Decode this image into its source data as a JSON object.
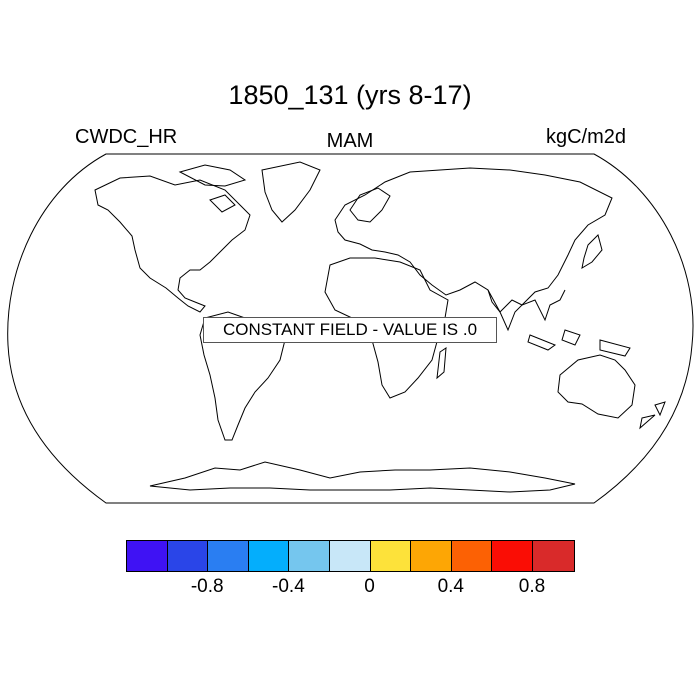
{
  "title": "1850_131 (yrs 8-17)",
  "left_label": "CWDC_HR",
  "center_label": "MAM",
  "right_label": "kgC/m2d",
  "constant_field_text": "CONSTANT FIELD - VALUE IS .0",
  "colorbar": {
    "colors": [
      "#3f12f4",
      "#2a45e8",
      "#2a7ef2",
      "#04aefc",
      "#75c6ee",
      "#c8e7f8",
      "#fde23a",
      "#fda605",
      "#fc6104",
      "#fa0d05",
      "#d92a2a"
    ],
    "tick_labels": [
      "-0.8",
      "-0.4",
      "0",
      "0.4",
      "0.8"
    ]
  }
}
